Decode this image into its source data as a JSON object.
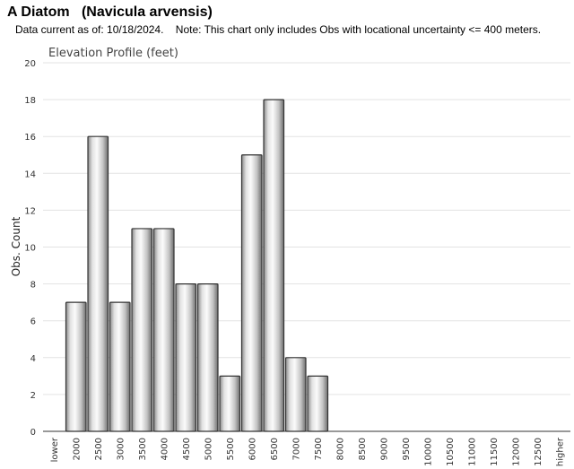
{
  "header": {
    "title": "A Diatom   (Navicula arvensis)",
    "subtitle": "Data current as of: 10/18/2024.    Note: This chart only includes Obs with locational uncertainty <= 400 meters."
  },
  "chart_data": {
    "type": "bar",
    "title": "Elevation Profile (feet)",
    "xlabel": "",
    "ylabel": "Obs. Count",
    "ylim": [
      0,
      20
    ],
    "yticks": [
      0,
      2,
      4,
      6,
      8,
      10,
      12,
      14,
      16,
      18,
      20
    ],
    "grid": true,
    "categories": [
      "lower",
      "2000",
      "2500",
      "3000",
      "3500",
      "4000",
      "4500",
      "5000",
      "5500",
      "6000",
      "6500",
      "7000",
      "7500",
      "8000",
      "8500",
      "9000",
      "9500",
      "10000",
      "10500",
      "11000",
      "11500",
      "12000",
      "12500",
      "higher"
    ],
    "values": [
      0,
      7,
      16,
      7,
      11,
      11,
      8,
      8,
      3,
      15,
      18,
      4,
      3,
      0,
      0,
      0,
      0,
      0,
      0,
      0,
      0,
      0,
      0,
      0
    ]
  }
}
